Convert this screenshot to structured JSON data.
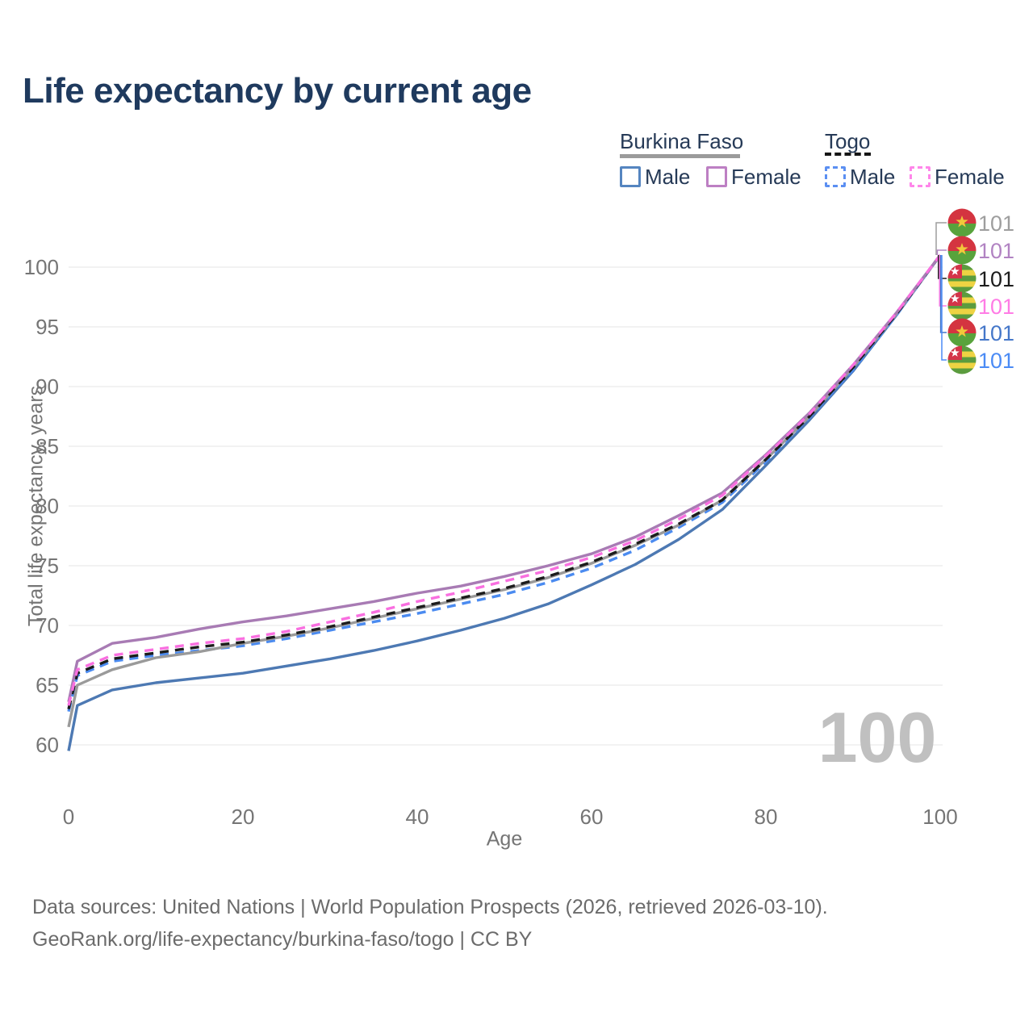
{
  "title": "Life expectancy by current age",
  "axes": {
    "x_label": "Age",
    "y_label": "Total life expectancy, years"
  },
  "age_counter": "100",
  "legend": {
    "groups": [
      {
        "name": "Burkina Faso",
        "line_style": "solid",
        "underline_color": "#9b9b9b",
        "items": [
          {
            "label": "Male",
            "color": "#5585c0"
          },
          {
            "label": "Female",
            "color": "#bd7fc3"
          }
        ]
      },
      {
        "name": "Togo",
        "line_style": "dashed",
        "underline_color": "#161616",
        "items": [
          {
            "label": "Male",
            "color": "#5b8ff2"
          },
          {
            "label": "Female",
            "color": "#ff86ea"
          }
        ]
      }
    ]
  },
  "chart_data": {
    "type": "line",
    "title": "Life expectancy by current age",
    "xlabel": "Age",
    "ylabel": "Total life expectancy, years",
    "xlim": [
      0,
      100
    ],
    "ylim": [
      60,
      100
    ],
    "grid": true,
    "legend_position": "top-right",
    "x_ticks": [
      0,
      20,
      40,
      60,
      80,
      100
    ],
    "y_ticks": [
      60,
      65,
      70,
      75,
      80,
      85,
      90,
      95,
      100
    ],
    "ages": [
      0,
      1,
      5,
      10,
      15,
      20,
      25,
      30,
      35,
      40,
      45,
      50,
      55,
      60,
      65,
      70,
      75,
      80,
      85,
      90,
      95,
      100
    ],
    "series": [
      {
        "name": "Burkina Faso Both sexes",
        "country": "Burkina Faso",
        "group": "Both sexes",
        "color": "#9a9a9a",
        "dashed": false,
        "end_label": "101",
        "end_label_color": "#9e9e9e",
        "values": [
          61.5,
          65.0,
          66.3,
          67.3,
          67.8,
          68.5,
          69.1,
          69.8,
          70.6,
          71.4,
          72.2,
          73.0,
          74.0,
          75.2,
          76.7,
          78.4,
          80.5,
          83.9,
          87.5,
          91.6,
          96.1,
          101
        ]
      },
      {
        "name": "Burkina Faso Female",
        "country": "Burkina Faso",
        "group": "Female",
        "color": "#a87bb4",
        "dashed": false,
        "end_label": "101",
        "end_label_color": "#b183c2",
        "values": [
          63.6,
          67.0,
          68.5,
          69.0,
          69.7,
          70.3,
          70.8,
          71.4,
          72.0,
          72.7,
          73.3,
          74.1,
          75.0,
          76.0,
          77.4,
          79.2,
          81.1,
          84.3,
          87.8,
          91.8,
          96.2,
          101
        ]
      },
      {
        "name": "Togo Both sexes",
        "country": "Togo",
        "group": "Both sexes",
        "color": "#1c1c1c",
        "dashed": true,
        "end_label": "101",
        "end_label_color": "#1c1c1c",
        "values": [
          63.0,
          66.0,
          67.2,
          67.7,
          68.2,
          68.6,
          69.2,
          69.9,
          70.7,
          71.5,
          72.3,
          73.1,
          74.1,
          75.3,
          76.8,
          78.5,
          80.5,
          83.9,
          87.5,
          91.6,
          96.1,
          101
        ]
      },
      {
        "name": "Togo Female",
        "country": "Togo",
        "group": "Female",
        "color": "#f96fe0",
        "dashed": true,
        "end_label": "101",
        "end_label_color": "#ff7ce5",
        "values": [
          63.3,
          66.3,
          67.5,
          68.0,
          68.5,
          68.9,
          69.5,
          70.3,
          71.1,
          72.0,
          72.8,
          73.7,
          74.6,
          75.7,
          77.1,
          78.9,
          80.9,
          84.2,
          87.7,
          91.8,
          96.2,
          101
        ]
      },
      {
        "name": "Burkina Faso Male",
        "country": "Burkina Faso",
        "group": "Male",
        "color": "#4d79b3",
        "dashed": false,
        "end_label": "101",
        "end_label_color": "#4577c9",
        "values": [
          59.5,
          63.3,
          64.6,
          65.2,
          65.6,
          66.0,
          66.6,
          67.2,
          67.9,
          68.7,
          69.6,
          70.6,
          71.8,
          73.4,
          75.1,
          77.2,
          79.7,
          83.4,
          87.2,
          91.3,
          96.0,
          101
        ]
      },
      {
        "name": "Togo Male",
        "country": "Togo",
        "group": "Male",
        "color": "#4b8bf0",
        "dashed": true,
        "end_label": "101",
        "end_label_color": "#4b8bf5",
        "values": [
          62.8,
          65.8,
          67.0,
          67.5,
          67.9,
          68.3,
          68.9,
          69.6,
          70.3,
          71.0,
          71.8,
          72.6,
          73.6,
          74.8,
          76.3,
          78.2,
          80.3,
          83.7,
          87.4,
          91.4,
          96.0,
          101
        ]
      }
    ]
  },
  "footer": {
    "line1": "Data sources: United Nations | World Population Prospects (2026, retrieved 2026-03-10).",
    "line2": "GeoRank.org/life-expectancy/burkina-faso/togo | CC BY"
  }
}
